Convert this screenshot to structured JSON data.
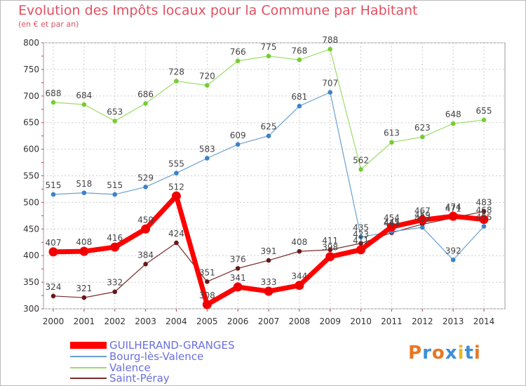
{
  "title": "Evolution des Impôts locaux pour la Commune par Habitant",
  "subtitle": "(en € et par an)",
  "logo": [
    "P",
    "r",
    "o",
    "x",
    "i",
    "t",
    "i"
  ],
  "chart_data": {
    "type": "line",
    "title": "Evolution des Impôts locaux pour la Commune par Habitant",
    "subtitle": "(en € et par an)",
    "xlabel": "",
    "ylabel": "",
    "x": [
      "2000",
      "2001",
      "2002",
      "2003",
      "2004",
      "2005",
      "2006",
      "2007",
      "2008",
      "2009",
      "2010",
      "2011",
      "2012",
      "2013",
      "2014"
    ],
    "ylim": [
      300,
      800
    ],
    "yticks": [
      300,
      350,
      400,
      450,
      500,
      550,
      600,
      650,
      700,
      750,
      800
    ],
    "grid": true,
    "legend_position": "bottom-left",
    "series": [
      {
        "name": "GUILHERAND-GRANGES",
        "color": "#ff0000",
        "marker": "#ee0000",
        "values": [
          407,
          408,
          416,
          450,
          512,
          308,
          341,
          333,
          344,
          398,
          411,
          454,
          467,
          474,
          468
        ],
        "labels": [
          "407",
          "408",
          "416",
          "450",
          "512",
          "308",
          "341",
          "333",
          "344",
          "398",
          "411",
          "454",
          "467",
          "474",
          "468"
        ]
      },
      {
        "name": "Bourg-lès-Valence",
        "color": "#6aa0d0",
        "marker": "#3c82c8",
        "values": [
          515,
          518,
          515,
          529,
          555,
          583,
          609,
          625,
          681,
          707,
          435,
          445,
          453,
          392,
          455
        ],
        "labels": [
          "515",
          "518",
          "515",
          "529",
          "555",
          "583",
          "609",
          "625",
          "681",
          "707",
          "435",
          "445",
          "453",
          "392",
          "455"
        ]
      },
      {
        "name": "Valence",
        "color": "#99dd66",
        "marker": "#77cc33",
        "values": [
          688,
          684,
          653,
          686,
          728,
          720,
          766,
          775,
          768,
          788,
          562,
          613,
          623,
          648,
          655
        ],
        "labels": [
          "688",
          "684",
          "653",
          "686",
          "728",
          "720",
          "766",
          "775",
          "768",
          "788",
          "562",
          "613",
          "623",
          "648",
          "655"
        ]
      },
      {
        "name": "Saint-Péray",
        "color": "#7a2a2a",
        "marker": "#6a1818",
        "values": [
          324,
          321,
          332,
          384,
          424,
          351,
          376,
          391,
          408,
          411,
          423,
          443,
          459,
          471,
          483
        ],
        "labels": [
          "324",
          "321",
          "332",
          "384",
          "424",
          "351",
          "376",
          "391",
          "408",
          "411",
          "423",
          "443",
          "459",
          "471",
          "483"
        ]
      }
    ]
  }
}
